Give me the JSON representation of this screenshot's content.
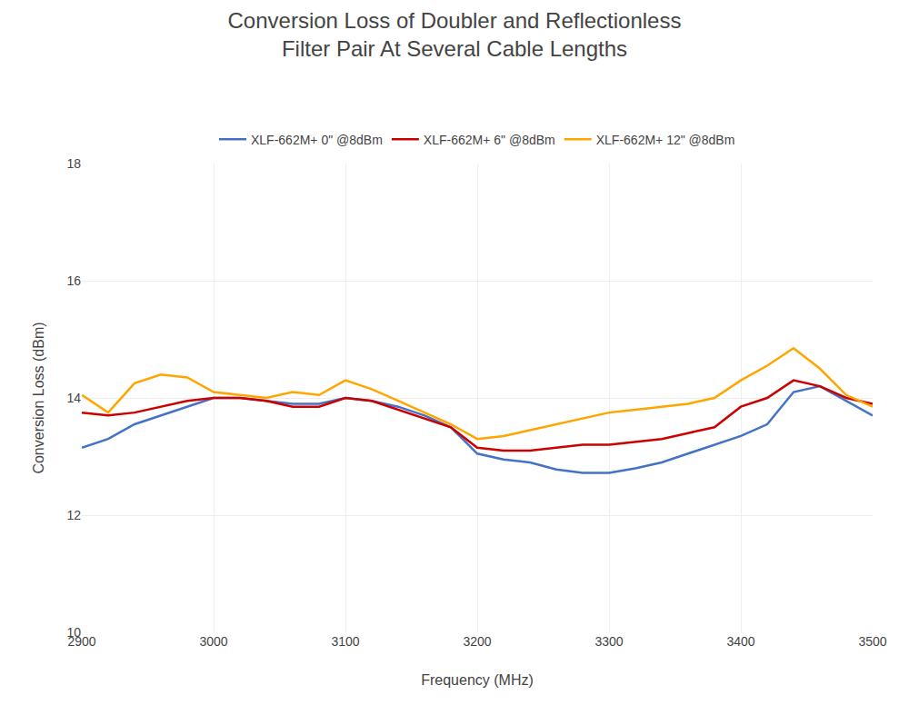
{
  "chart_data": {
    "type": "line",
    "title": "Conversion Loss of Doubler and Reflectionless\nFilter Pair At Several Cable Lengths",
    "xlabel": "Frequency (MHz)",
    "ylabel": "Conversion Loss (dBm)",
    "x": [
      2900,
      2920,
      2940,
      2960,
      2980,
      3000,
      3020,
      3040,
      3060,
      3080,
      3100,
      3120,
      3140,
      3160,
      3180,
      3200,
      3220,
      3240,
      3260,
      3280,
      3300,
      3320,
      3340,
      3360,
      3380,
      3400,
      3420,
      3440,
      3460,
      3480,
      3500
    ],
    "series": [
      {
        "name": "XLF-662M+ 0\" @8dBm",
        "color": "#4472c4",
        "values": [
          13.15,
          13.3,
          13.55,
          13.7,
          13.85,
          14.0,
          14.0,
          13.95,
          13.9,
          13.9,
          14.0,
          13.95,
          13.85,
          13.7,
          13.5,
          13.05,
          12.95,
          12.9,
          12.78,
          12.72,
          12.72,
          12.8,
          12.9,
          13.05,
          13.2,
          13.35,
          13.55,
          14.1,
          14.2,
          13.95,
          13.7
        ]
      },
      {
        "name": "XLF-662M+ 6\" @8dBm",
        "color": "#cc0000",
        "values": [
          13.75,
          13.7,
          13.75,
          13.85,
          13.95,
          14.0,
          14.0,
          13.95,
          13.85,
          13.85,
          14.0,
          13.95,
          13.8,
          13.65,
          13.5,
          13.15,
          13.1,
          13.1,
          13.15,
          13.2,
          13.2,
          13.25,
          13.3,
          13.4,
          13.5,
          13.85,
          14.0,
          14.3,
          14.2,
          14.0,
          13.9
        ]
      },
      {
        "name": "XLF-662M+ 12\" @8dBm",
        "color": "#ffa500",
        "values": [
          14.05,
          13.75,
          14.25,
          14.4,
          14.35,
          14.1,
          14.05,
          14.0,
          14.1,
          14.05,
          14.3,
          14.15,
          13.95,
          13.75,
          13.55,
          13.3,
          13.35,
          13.45,
          13.55,
          13.65,
          13.75,
          13.8,
          13.85,
          13.9,
          14.0,
          14.3,
          14.55,
          14.85,
          14.5,
          14.05,
          13.85
        ]
      }
    ],
    "xlim": [
      2900,
      3500
    ],
    "ylim": [
      10,
      18
    ],
    "xticks": [
      2900,
      3000,
      3100,
      3200,
      3300,
      3400,
      3500
    ],
    "yticks": [
      10,
      12,
      14,
      16,
      18
    ],
    "grid": true,
    "legend": "top"
  }
}
